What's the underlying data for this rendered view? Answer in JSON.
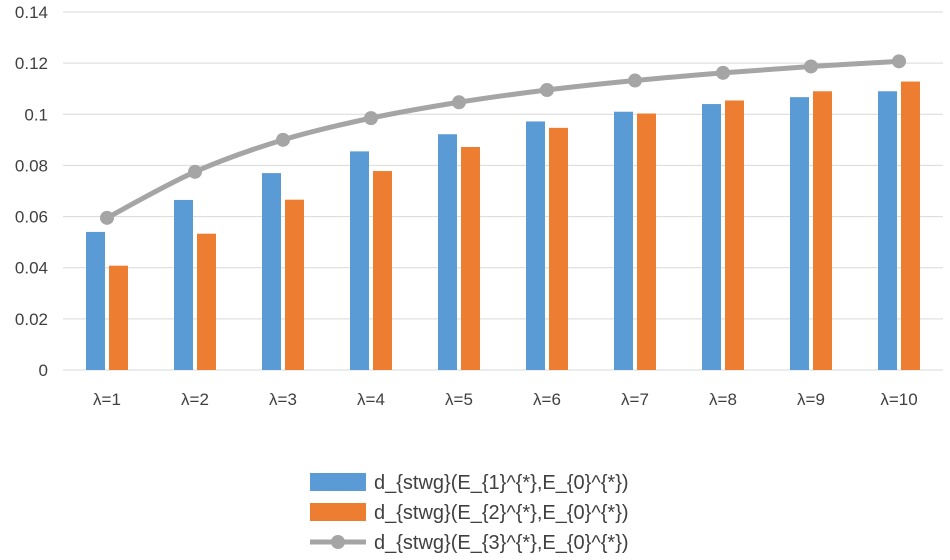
{
  "chart_data": {
    "type": "bar",
    "categories": [
      "λ=1",
      "λ=2",
      "λ=3",
      "λ=4",
      "λ=5",
      "λ=6",
      "λ=7",
      "λ=8",
      "λ=9",
      "λ=10"
    ],
    "series": [
      {
        "name": "d_{stwg}(E_{1}^{*},E_{0}^{*})",
        "kind": "bar",
        "color": "#5B9BD5",
        "values": [
          0.054,
          0.0665,
          0.077,
          0.0855,
          0.0922,
          0.0972,
          0.101,
          0.104,
          0.1067,
          0.109
        ]
      },
      {
        "name": "d_{stwg}(E_{2}^{*},E_{0}^{*})",
        "kind": "bar",
        "color": "#ED7D31",
        "values": [
          0.0408,
          0.0533,
          0.0666,
          0.0778,
          0.0872,
          0.0947,
          0.1003,
          0.1054,
          0.109,
          0.1128
        ]
      },
      {
        "name": "d_{stwg}(E_{3}^{*},E_{0}^{*})",
        "kind": "line",
        "color": "#A5A5A5",
        "values": [
          0.0595,
          0.0775,
          0.09,
          0.0985,
          0.1047,
          0.1095,
          0.1132,
          0.1162,
          0.1187,
          0.1207
        ]
      }
    ],
    "ylim": [
      0,
      0.14
    ],
    "yticks": [
      "0",
      "0.02",
      "0.04",
      "0.06",
      "0.08",
      "0.1",
      "0.12",
      "0.14"
    ],
    "title": "",
    "xlabel": "",
    "ylabel": "",
    "grid": true,
    "gridline_color": "#D9D9D9",
    "legend_position": "bottom"
  }
}
